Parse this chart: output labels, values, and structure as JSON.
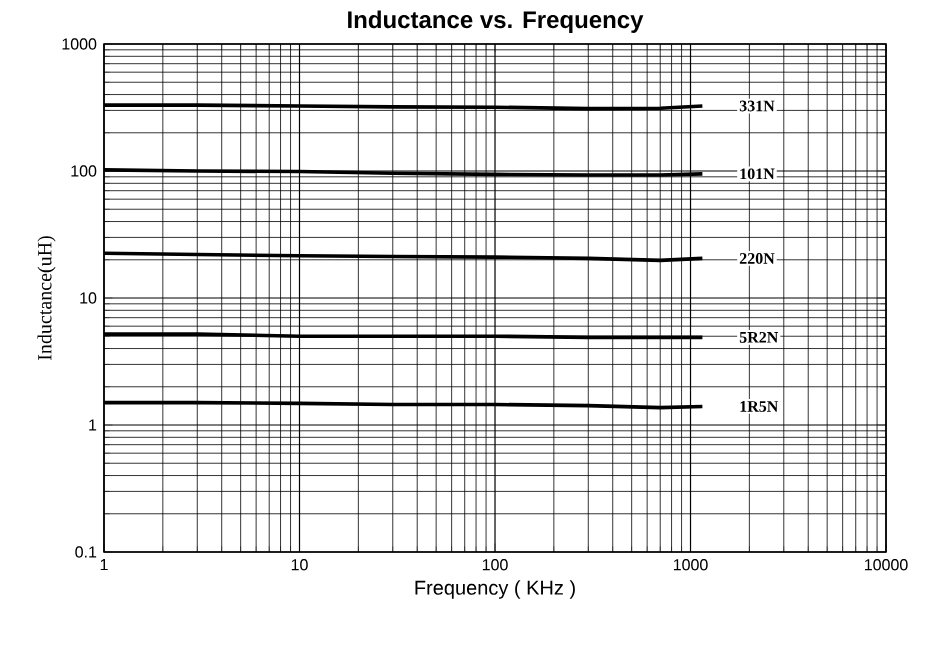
{
  "chart_data": {
    "type": "line",
    "title": "Inductance vs. Frequency",
    "xlabel": "Frequency ( KHz )",
    "ylabel": "Inductance(uH)",
    "log": "xy",
    "grid": true,
    "xlim": [
      1,
      10000
    ],
    "ylim": [
      0.1,
      1000
    ],
    "xticks": [
      1,
      10,
      100,
      1000,
      10000
    ],
    "yticks": [
      0.1,
      1,
      10,
      100,
      1000
    ],
    "marker": "none",
    "line_style": "solid",
    "series": [
      {
        "name": "331N",
        "color": "#000000",
        "x": [
          1,
          3,
          10,
          30,
          100,
          300,
          700,
          1150
        ],
        "values": [
          330,
          330,
          325,
          320,
          318,
          310,
          312,
          325
        ]
      },
      {
        "name": "101N",
        "color": "#000000",
        "x": [
          1,
          3,
          10,
          30,
          100,
          300,
          700,
          1150
        ],
        "values": [
          102,
          100,
          99,
          96,
          94,
          93,
          93,
          95
        ]
      },
      {
        "name": "220N",
        "color": "#000000",
        "x": [
          1,
          3,
          10,
          30,
          100,
          300,
          700,
          1150
        ],
        "values": [
          22.5,
          22,
          21.5,
          21.2,
          21,
          20.5,
          19.8,
          20.5
        ]
      },
      {
        "name": "5R2N",
        "color": "#000000",
        "x": [
          1,
          3,
          10,
          30,
          100,
          300,
          700,
          1150
        ],
        "values": [
          5.2,
          5.2,
          5.0,
          5.0,
          5.0,
          4.9,
          4.9,
          4.9
        ]
      },
      {
        "name": "1R5N",
        "color": "#000000",
        "x": [
          1,
          3,
          10,
          30,
          100,
          300,
          700,
          1150
        ],
        "values": [
          1.5,
          1.5,
          1.48,
          1.45,
          1.45,
          1.42,
          1.37,
          1.4
        ]
      }
    ]
  }
}
